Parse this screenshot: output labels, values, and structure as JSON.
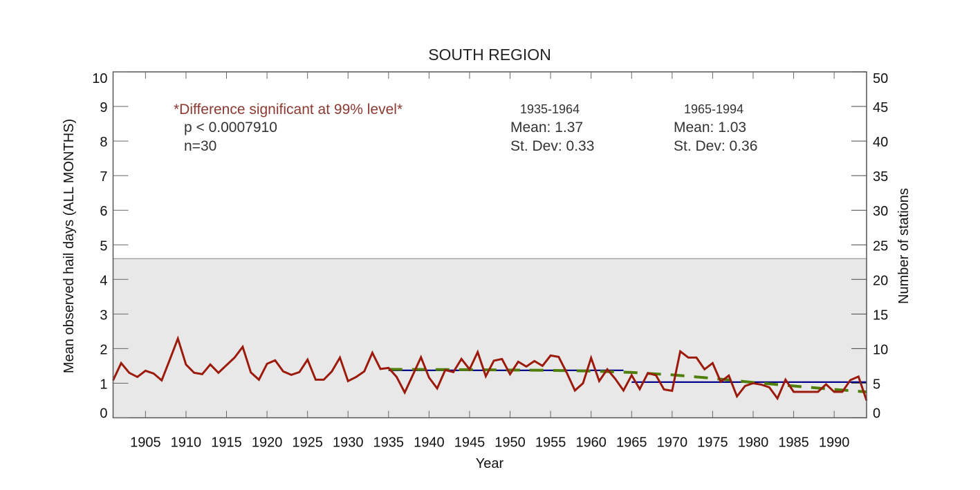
{
  "chart_data": {
    "type": "line",
    "title": "SOUTH REGION",
    "xlabel": "Year",
    "ylabel": "Mean observed hail days (ALL MONTHS)",
    "y2label": "Number of stations",
    "xlim": [
      1901,
      1994
    ],
    "ylim": [
      0,
      10
    ],
    "y2lim": [
      0,
      50
    ],
    "xticks": [
      1905,
      1910,
      1915,
      1920,
      1925,
      1930,
      1935,
      1940,
      1945,
      1950,
      1955,
      1960,
      1965,
      1970,
      1975,
      1980,
      1985,
      1990
    ],
    "yticks": [
      0,
      1,
      2,
      3,
      4,
      5,
      6,
      7,
      8,
      9,
      10
    ],
    "y2ticks": [
      0,
      5,
      10,
      15,
      20,
      25,
      30,
      35,
      40,
      45,
      50
    ],
    "grid": false,
    "series": [
      {
        "name": "Mean observed hail days",
        "color": "#9b1a0c",
        "x": [
          1901,
          1902,
          1903,
          1904,
          1905,
          1906,
          1907,
          1908,
          1909,
          1910,
          1911,
          1912,
          1913,
          1914,
          1915,
          1916,
          1917,
          1918,
          1919,
          1920,
          1921,
          1922,
          1923,
          1924,
          1925,
          1926,
          1927,
          1928,
          1929,
          1930,
          1931,
          1932,
          1933,
          1934,
          1935,
          1936,
          1937,
          1938,
          1939,
          1940,
          1941,
          1942,
          1943,
          1944,
          1945,
          1946,
          1947,
          1948,
          1949,
          1950,
          1951,
          1952,
          1953,
          1954,
          1955,
          1956,
          1957,
          1958,
          1959,
          1960,
          1961,
          1962,
          1963,
          1964,
          1965,
          1966,
          1967,
          1968,
          1969,
          1970,
          1971,
          1972,
          1973,
          1974,
          1975,
          1976,
          1977,
          1978,
          1979,
          1980,
          1981,
          1982,
          1983,
          1984,
          1985,
          1986,
          1987,
          1988,
          1989,
          1990,
          1991,
          1992,
          1993,
          1994
        ],
        "values": [
          1.08,
          1.58,
          1.3,
          1.18,
          1.36,
          1.28,
          1.08,
          1.68,
          2.29,
          1.54,
          1.3,
          1.26,
          1.54,
          1.3,
          1.52,
          1.74,
          2.05,
          1.31,
          1.1,
          1.56,
          1.66,
          1.34,
          1.24,
          1.32,
          1.68,
          1.1,
          1.1,
          1.34,
          1.74,
          1.06,
          1.18,
          1.34,
          1.88,
          1.41,
          1.44,
          1.18,
          0.73,
          1.24,
          1.75,
          1.16,
          0.85,
          1.38,
          1.32,
          1.7,
          1.4,
          1.9,
          1.2,
          1.65,
          1.7,
          1.26,
          1.62,
          1.48,
          1.64,
          1.5,
          1.8,
          1.76,
          1.3,
          0.79,
          1.0,
          1.73,
          1.06,
          1.4,
          1.12,
          0.79,
          1.23,
          0.83,
          1.29,
          1.23,
          0.82,
          0.78,
          1.92,
          1.74,
          1.74,
          1.4,
          1.58,
          1.04,
          1.22,
          0.62,
          0.92,
          1.0,
          0.96,
          0.88,
          0.56,
          1.1,
          0.75,
          0.75,
          0.75,
          0.75,
          0.97,
          0.75,
          0.75,
          1.09,
          1.19,
          0.5
        ]
      },
      {
        "name": "Mean 1935-1964",
        "color": "#00008b",
        "x": [
          1935,
          1964
        ],
        "values": [
          1.37,
          1.37
        ]
      },
      {
        "name": "Mean 1965-1994",
        "color": "#00008b",
        "x": [
          1965,
          1994
        ],
        "values": [
          1.03,
          1.03
        ]
      },
      {
        "name": "Trend 1935-1994",
        "color": "#4f7f0a",
        "dashed": true,
        "x": [
          1935,
          1945,
          1955,
          1960,
          1965,
          1970,
          1975,
          1980,
          1985,
          1990,
          1994
        ],
        "values": [
          1.4,
          1.39,
          1.37,
          1.35,
          1.31,
          1.24,
          1.14,
          1.02,
          0.92,
          0.82,
          0.75
        ]
      }
    ],
    "stations": {
      "name": "Number of stations",
      "value": 23,
      "fill": "#e8e8e8"
    },
    "annotations": {
      "significance": "*Difference significant at 99% level*",
      "p_value": "p < 0.0007910",
      "n": "n=30",
      "period1": {
        "label": "1935-1964",
        "mean": "Mean: 1.37",
        "stdev": "St. Dev: 0.33"
      },
      "period2": {
        "label": "1965-1994",
        "mean": "Mean: 1.03",
        "stdev": "St. Dev: 0.36"
      }
    }
  }
}
